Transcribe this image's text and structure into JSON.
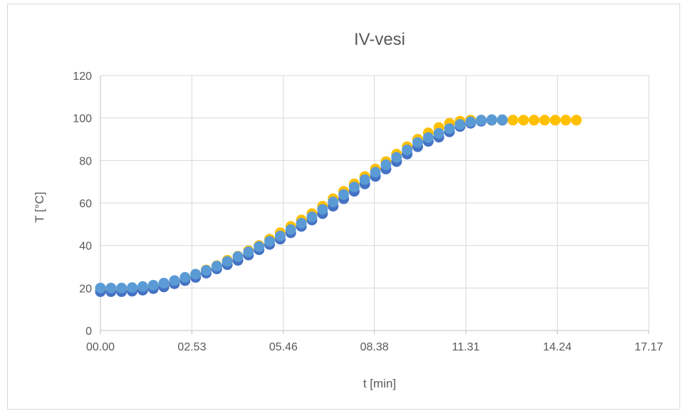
{
  "chart_data": {
    "type": "scatter",
    "title": "IV-vesi",
    "xlabel": "t [min]",
    "ylabel": "T [°C]",
    "ylim": [
      0,
      120
    ],
    "yticks": [
      "0",
      "20",
      "40",
      "60",
      "80",
      "100",
      "120"
    ],
    "xlim": [
      0,
      1037
    ],
    "xticks": [
      {
        "label": "00.00",
        "value": 0
      },
      {
        "label": "02.53",
        "value": 173
      },
      {
        "label": "05.46",
        "value": 346
      },
      {
        "label": "08.38",
        "value": 518
      },
      {
        "label": "11.31",
        "value": 691
      },
      {
        "label": "14.24",
        "value": 864
      },
      {
        "label": "17.17",
        "value": 1037
      }
    ],
    "x_unit_note": "seconds",
    "grid": true,
    "legend": "none",
    "series": [
      {
        "color": "#ffc000",
        "x": [
          0,
          20,
          40,
          60,
          80,
          100,
          120,
          140,
          160,
          180,
          200,
          220,
          240,
          260,
          280,
          300,
          320,
          340,
          360,
          380,
          400,
          420,
          440,
          460,
          480,
          500,
          520,
          540,
          560,
          580,
          600,
          620,
          640,
          660,
          680,
          700,
          720,
          740,
          760,
          780,
          800,
          820,
          840,
          860,
          880,
          900
        ],
        "y": [
          19,
          19,
          19,
          19.2,
          19.8,
          20.5,
          21.5,
          23,
          24.5,
          26.5,
          28.5,
          30.5,
          33,
          35,
          37.5,
          40,
          43,
          46,
          49,
          52,
          55,
          58.5,
          62,
          65.5,
          69,
          72.5,
          76,
          79.5,
          83,
          86.5,
          90,
          93,
          95.5,
          97.5,
          98.5,
          99,
          99,
          99,
          99,
          99,
          99,
          99,
          99,
          99,
          99,
          99
        ]
      },
      {
        "color": "#4472c4",
        "x": [
          0,
          20,
          40,
          60,
          80,
          100,
          120,
          140,
          160,
          180,
          200,
          220,
          240,
          260,
          280,
          300,
          320,
          340,
          360,
          380,
          400,
          420,
          440,
          460,
          480,
          500,
          520,
          540,
          560,
          580,
          600,
          620,
          640,
          660,
          680,
          700,
          720,
          740,
          760
        ],
        "y": [
          18.3,
          18.3,
          18.3,
          18.5,
          19,
          19.7,
          20.5,
          22,
          23.5,
          25,
          27,
          29,
          31,
          33,
          35.5,
          38,
          40.5,
          43,
          46,
          49,
          52,
          55,
          58.5,
          62,
          65.5,
          69,
          72.5,
          76,
          79.5,
          83,
          86.5,
          89,
          91,
          93.5,
          96,
          97.5,
          98.5,
          99,
          99
        ]
      },
      {
        "color": "#5b9bd5",
        "x": [
          0,
          20,
          40,
          60,
          80,
          100,
          120,
          140,
          160,
          180,
          200,
          220,
          240,
          260,
          280,
          300,
          320,
          340,
          360,
          380,
          400,
          420,
          440,
          460,
          480,
          500,
          520,
          540,
          560,
          580,
          600,
          620,
          640,
          660,
          680,
          700,
          720,
          740,
          760
        ],
        "y": [
          20,
          20,
          20,
          20.2,
          20.7,
          21.3,
          22.3,
          23.5,
          25,
          26.5,
          28.3,
          30.3,
          32.5,
          34.8,
          37,
          39.5,
          42,
          44.5,
          47.5,
          50.5,
          53.5,
          57,
          60.5,
          64,
          67.5,
          71,
          74.5,
          78,
          81.5,
          85,
          88.5,
          90.8,
          92.8,
          95,
          97,
          98.2,
          99,
          99.2,
          99.2
        ]
      }
    ]
  }
}
